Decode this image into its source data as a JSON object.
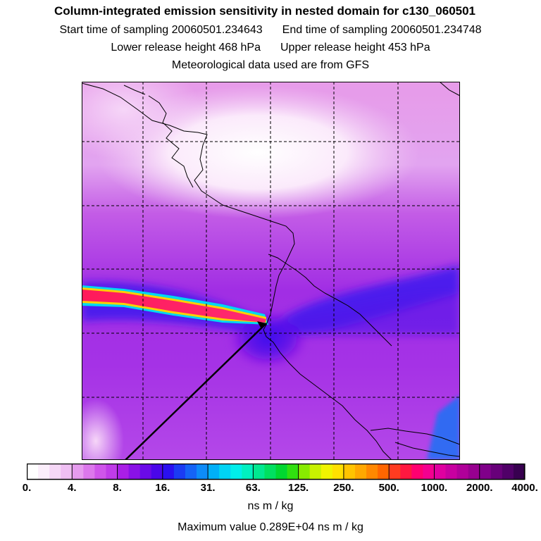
{
  "title": {
    "main": "Column-integrated emission sensitivity in nested domain for c130_060501",
    "start": "Start time of sampling 20060501.234643",
    "end": "End time of sampling 20060501.234748",
    "lower": "Lower release height  468 hPa",
    "upper": "Upper release height  453 hPa",
    "met": "Meteorological data used are from GFS"
  },
  "colorbar": {
    "labels": [
      "0.",
      "4.",
      "8.",
      "16.",
      "31.",
      "63.",
      "125.",
      "250.",
      "500.",
      "1000.",
      "2000.",
      "4000."
    ],
    "colors": [
      "#ffffff",
      "#fbeefb",
      "#f6d8f7",
      "#efbff3",
      "#e69cef",
      "#dc78ec",
      "#cf55ea",
      "#c03ce8",
      "#a91fe6",
      "#8a12e6",
      "#6a0ae8",
      "#4a06ea",
      "#2a10f0",
      "#1b3cf3",
      "#1564f6",
      "#0d8cf8",
      "#00b0f8",
      "#00d4f4",
      "#00eeea",
      "#00f0c0",
      "#00e890",
      "#00e060",
      "#00d830",
      "#30e010",
      "#88ec00",
      "#c8f200",
      "#f0f400",
      "#ffe000",
      "#ffc400",
      "#ffa800",
      "#ff8800",
      "#ff6600",
      "#ff3c20",
      "#ff1840",
      "#ff0070",
      "#f40090",
      "#e000a0",
      "#c800a0",
      "#b0009a",
      "#980090",
      "#80008a",
      "#68007a",
      "#500068",
      "#380050"
    ],
    "units": "ns m / kg"
  },
  "maxvalue": "Maximum value  0.289E+04 ns m / kg"
}
